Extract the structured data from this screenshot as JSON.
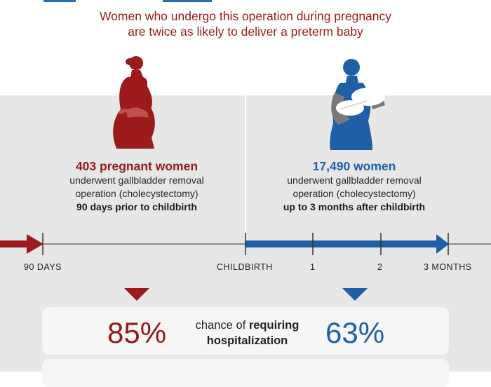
{
  "headline": {
    "line1": "Women who undergo this operation during pregnancy",
    "line2": "are twice as likely to deliver a preterm baby"
  },
  "left_group": {
    "count": "403 pregnant women",
    "line1": "underwent gallbladder removal",
    "line2": "operation (cholecystectomy)",
    "timing": "90 days prior to childbirth",
    "icon": "pregnant-woman-icon",
    "color": "#8f1c1c"
  },
  "right_group": {
    "count": "17,490 women",
    "line1": "underwent gallbladder removal",
    "line2": "operation (cholecystectomy)",
    "timing": "up to 3 months after childbirth",
    "icon": "mother-holding-baby-icon",
    "color": "#1e5fa6"
  },
  "timeline": {
    "labels": [
      "90 DAYS",
      "CHILDBIRTH",
      "1",
      "2",
      "3 MONTHS"
    ]
  },
  "stat": {
    "left_value": "85%",
    "right_value": "63%",
    "text_plain": "chance of",
    "text_bold1": "requiring",
    "text_bold2": "hospitalization"
  }
}
